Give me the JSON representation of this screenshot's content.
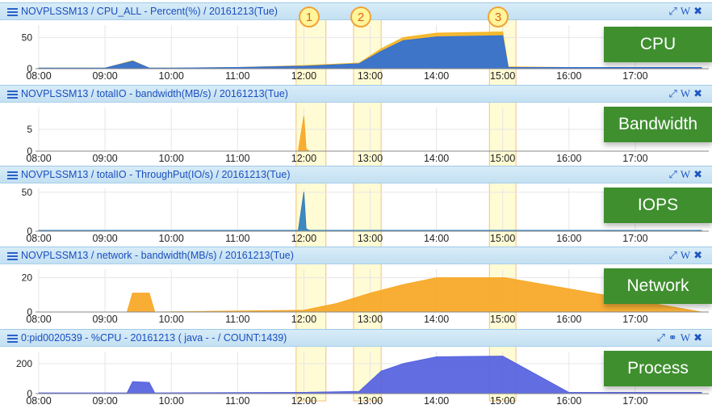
{
  "time_ticks": [
    "08:00",
    "09:00",
    "10:00",
    "11:00",
    "12:00",
    "13:00",
    "14:00",
    "15:00",
    "16:00",
    "17:00"
  ],
  "markers": [
    "1",
    "2",
    "3"
  ],
  "header_icons": [
    "expand-icon",
    "wiki-icon",
    "close-icon"
  ],
  "colors": {
    "header_bg": "#cfe6f5",
    "label_bg": "#3f8f2f",
    "highlight": "#fff7b0",
    "blue": "#2f6fd6",
    "orange": "#f7a724",
    "purple": "#5561e0"
  },
  "panels": [
    {
      "title": "NOVPLSSM13 / CPU_ALL - Percent(%) / 20161213(Tue)",
      "label": "CPU",
      "icons": [
        "expand-icon",
        "wiki-icon",
        "close-icon"
      ]
    },
    {
      "title": "NOVPLSSM13 / totalIO - bandwidth(MB/s) / 20161213(Tue)",
      "label": "Bandwidth",
      "icons": [
        "expand-icon",
        "wiki-icon",
        "close-icon"
      ]
    },
    {
      "title": "NOVPLSSM13 / totalIO - ThroughPut(IO/s) / 20161213(Tue)",
      "label": "IOPS",
      "icons": [
        "expand-icon",
        "wiki-icon",
        "close-icon"
      ]
    },
    {
      "title": "NOVPLSSM13 / network - bandwidth(MB/s) / 20161213(Tue)",
      "label": "Network",
      "icons": [
        "expand-icon",
        "wiki-icon",
        "close-icon"
      ]
    },
    {
      "title": "0:pid0020539 - %CPU - 20161213 ( java - - / COUNT:1439)",
      "label": "Process",
      "icons": [
        "expand-icon",
        "link-icon",
        "wiki-icon",
        "close-icon"
      ]
    }
  ],
  "chart_data": [
    {
      "type": "area",
      "ylim": [
        0,
        70
      ],
      "yticks": [
        "0",
        "50"
      ],
      "x": [
        "08:00",
        "09:00",
        "09:25",
        "09:40",
        "10:00",
        "11:00",
        "12:00",
        "12:50",
        "13:10",
        "13:30",
        "14:00",
        "14:30",
        "15:00",
        "15:05",
        "16:00",
        "17:00",
        "18:00"
      ],
      "series": [
        {
          "values": [
            1,
            1,
            12,
            1,
            1,
            2,
            4,
            8,
            28,
            45,
            51,
            52,
            53,
            2,
            2,
            2,
            2
          ]
        },
        {
          "values": [
            1,
            1,
            13,
            1,
            1,
            2,
            5,
            9,
            32,
            50,
            57,
            58,
            59,
            3,
            2,
            2,
            2
          ]
        }
      ]
    },
    {
      "type": "area",
      "ylim": [
        0,
        10
      ],
      "yticks": [
        "0",
        "5"
      ],
      "x": [
        "08:00",
        "11:55",
        "12:00",
        "12:02",
        "12:05",
        "18:00"
      ],
      "series": [
        {
          "values": [
            0,
            0,
            8,
            0.5,
            0,
            0
          ]
        }
      ]
    },
    {
      "type": "area",
      "ylim": [
        0,
        55
      ],
      "yticks": [
        "0",
        "50"
      ],
      "x": [
        "08:00",
        "11:55",
        "12:00",
        "12:02",
        "12:05",
        "18:00"
      ],
      "series": [
        {
          "values": [
            1,
            1,
            50,
            3,
            1,
            1
          ]
        }
      ]
    },
    {
      "type": "area",
      "ylim": [
        0,
        25
      ],
      "yticks": [
        "0",
        "20"
      ],
      "x": [
        "08:00",
        "09:20",
        "09:25",
        "09:40",
        "09:45",
        "12:00",
        "12:30",
        "13:00",
        "13:30",
        "14:00",
        "14:30",
        "15:00",
        "15:02",
        "18:00"
      ],
      "series": [
        {
          "values": [
            0,
            0,
            11,
            11,
            0,
            1,
            5,
            11,
            16,
            20,
            20,
            20,
            20,
            0
          ]
        }
      ]
    },
    {
      "type": "area",
      "ylim": [
        0,
        280
      ],
      "yticks": [
        "0",
        "200"
      ],
      "x": [
        "08:00",
        "09:20",
        "09:25",
        "09:40",
        "09:45",
        "12:00",
        "12:50",
        "13:10",
        "13:30",
        "14:00",
        "14:30",
        "14:59",
        "15:00",
        "16:00",
        "17:00",
        "18:00"
      ],
      "series": [
        {
          "values": [
            5,
            5,
            80,
            75,
            5,
            8,
            15,
            150,
            200,
            245,
            248,
            250,
            250,
            8,
            8,
            8
          ]
        }
      ]
    }
  ]
}
